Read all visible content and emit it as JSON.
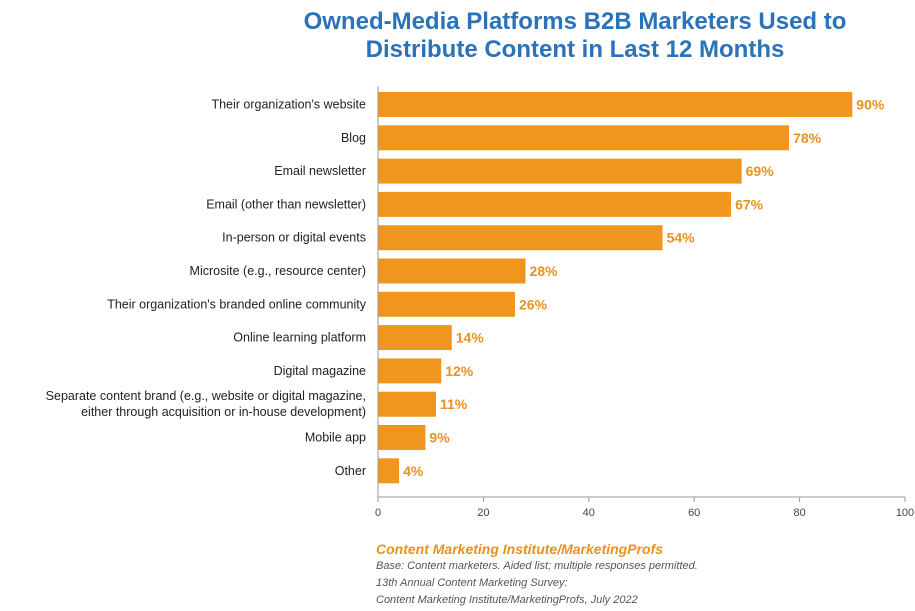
{
  "title_lines": [
    "Owned-Media Platforms B2B Marketers Used to",
    "Distribute Content in Last 12 Months"
  ],
  "chart_data": {
    "type": "bar",
    "orientation": "horizontal",
    "title": "Owned-Media Platforms B2B Marketers Used to Distribute Content in Last 12 Months",
    "categories": [
      [
        "Their organization's website"
      ],
      [
        "Blog"
      ],
      [
        "Email newsletter"
      ],
      [
        "Email (other than newsletter)"
      ],
      [
        "In-person or digital events"
      ],
      [
        "Microsite (e.g., resource center)"
      ],
      [
        "Their organization's branded online community"
      ],
      [
        "Online learning platform"
      ],
      [
        "Digital magazine"
      ],
      [
        "Separate content brand (e.g., website or digital magazine,",
        "either through acquisition or in-house development)"
      ],
      [
        "Mobile app"
      ],
      [
        "Other"
      ]
    ],
    "values": [
      90,
      78,
      69,
      67,
      54,
      28,
      26,
      14,
      12,
      11,
      9,
      4
    ],
    "value_labels": [
      "90%",
      "78%",
      "69%",
      "67%",
      "54%",
      "28%",
      "26%",
      "14%",
      "12%",
      "11%",
      "9%",
      "4%"
    ],
    "xlim": [
      0,
      100
    ],
    "xticks": [
      0,
      20,
      40,
      60,
      80,
      100
    ],
    "bar_color": "#f0961f",
    "label_color": "#e8921f",
    "grid": false
  },
  "source": {
    "org": "Content Marketing Institute/MarketingProfs",
    "notes": [
      "Base: Content marketers. Aided list; multiple responses permitted.",
      "13th Annual Content Marketing Survey:",
      "Content Marketing Institute/MarketingProfs, July 2022"
    ]
  }
}
